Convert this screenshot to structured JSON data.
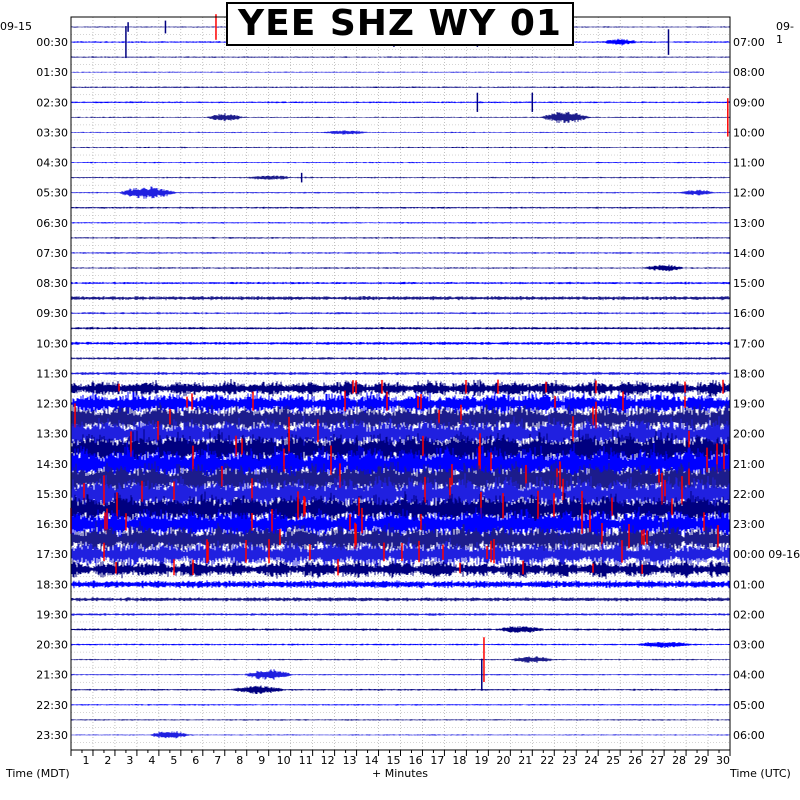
{
  "chart_data": {
    "type": "line",
    "title": "YEE SHZ WY 01",
    "xlabel": "+ Minutes",
    "ylabel_left": "Time (MDT)",
    "ylabel_right": "Time (UTC)",
    "date_left_top": "09-15",
    "date_right_top": "09-1",
    "x_ticks": [
      "1",
      "2",
      "3",
      "4",
      "5",
      "6",
      "7",
      "8",
      "9",
      "10",
      "11",
      "12",
      "13",
      "14",
      "15",
      "16",
      "17",
      "18",
      "19",
      "20",
      "21",
      "22",
      "23",
      "24",
      "25",
      "26",
      "27",
      "28",
      "29",
      "30"
    ],
    "xlim": [
      0,
      30
    ],
    "left_time_labels": [
      "00:30",
      "01:30",
      "02:30",
      "03:30",
      "04:30",
      "05:30",
      "06:30",
      "07:30",
      "08:30",
      "09:30",
      "10:30",
      "11:30",
      "12:30",
      "13:30",
      "14:30",
      "15:30",
      "16:30",
      "17:30",
      "18:30",
      "19:30",
      "20:30",
      "21:30",
      "22:30",
      "23:30"
    ],
    "right_time_labels": [
      "07:00",
      "08:00",
      "09:00",
      "10:00",
      "11:00",
      "12:00",
      "13:00",
      "14:00",
      "15:00",
      "16:00",
      "17:00",
      "18:00",
      "19:00",
      "20:00",
      "21:00",
      "22:00",
      "23:00",
      "00:00 09-16",
      "01:00",
      "02:00",
      "03:00",
      "04:00",
      "05:00",
      "06:00"
    ],
    "trace_rows": 48,
    "trace_colors": [
      "#000080",
      "#0000ff",
      "#1c1c8c",
      "#2020e0"
    ],
    "clip_color": "#ff0000",
    "row_activity": [
      0.5,
      0.7,
      0.6,
      0.5,
      0.6,
      0.7,
      0.5,
      0.5,
      0.5,
      0.5,
      0.6,
      0.6,
      0.7,
      0.6,
      0.7,
      0.7,
      0.6,
      0.9,
      1.6,
      0.8,
      1.0,
      1.2,
      1.0,
      1.2,
      3.5,
      5.0,
      6.5,
      7.0,
      7.5,
      8.0,
      7.5,
      8.0,
      7.0,
      7.0,
      6.5,
      6.0,
      4.0,
      3.0,
      1.6,
      1.0,
      0.9,
      0.7,
      0.6,
      0.6,
      0.7,
      0.6,
      0.6,
      0.5
    ],
    "events": [
      {
        "row": 0,
        "minute": 2.6,
        "amp": 3
      },
      {
        "row": 0,
        "minute": 4.3,
        "amp": 4
      },
      {
        "row": 0,
        "minute": 6.6,
        "amp": 8,
        "clip": true
      },
      {
        "row": 1,
        "minute": 2.5,
        "amp": 10
      },
      {
        "row": 1,
        "minute": 14.7,
        "amp": 3
      },
      {
        "row": 1,
        "minute": 18.5,
        "amp": 3
      },
      {
        "row": 1,
        "minute": 27.2,
        "amp": 8
      },
      {
        "row": 5,
        "minute": 18.5,
        "amp": 6
      },
      {
        "row": 5,
        "minute": 21.0,
        "amp": 6
      },
      {
        "row": 6,
        "minute": 29.9,
        "amp": 12,
        "clip": true
      },
      {
        "row": 10,
        "minute": 10.5,
        "amp": 3
      },
      {
        "row": 36,
        "minute": 26.0,
        "amp": 3,
        "clip": true
      },
      {
        "row": 42,
        "minute": 18.8,
        "amp": 14,
        "clip": true
      },
      {
        "row": 43,
        "minute": 18.7,
        "amp": 10
      }
    ],
    "bursts": [
      {
        "row": 1,
        "minute": 13.0,
        "width": 2.0,
        "amp": 3
      },
      {
        "row": 1,
        "minute": 25.0,
        "width": 1.5,
        "amp": 3
      },
      {
        "row": 6,
        "minute": 7.0,
        "width": 1.6,
        "amp": 4
      },
      {
        "row": 6,
        "minute": 22.5,
        "width": 2.2,
        "amp": 6
      },
      {
        "row": 7,
        "minute": 12.5,
        "width": 2.0,
        "amp": 2
      },
      {
        "row": 10,
        "minute": 9.0,
        "width": 2.0,
        "amp": 2
      },
      {
        "row": 11,
        "minute": 3.5,
        "width": 2.6,
        "amp": 6
      },
      {
        "row": 11,
        "minute": 28.5,
        "width": 1.5,
        "amp": 3
      },
      {
        "row": 16,
        "minute": 27.0,
        "width": 1.8,
        "amp": 3
      },
      {
        "row": 40,
        "minute": 20.5,
        "width": 2.0,
        "amp": 3
      },
      {
        "row": 41,
        "minute": 27.0,
        "width": 2.5,
        "amp": 3
      },
      {
        "row": 42,
        "minute": 21.0,
        "width": 2.0,
        "amp": 3
      },
      {
        "row": 43,
        "minute": 9.0,
        "width": 2.2,
        "amp": 5
      },
      {
        "row": 44,
        "minute": 8.5,
        "width": 2.4,
        "amp": 4
      },
      {
        "row": 47,
        "minute": 4.5,
        "width": 1.8,
        "amp": 4
      }
    ]
  }
}
